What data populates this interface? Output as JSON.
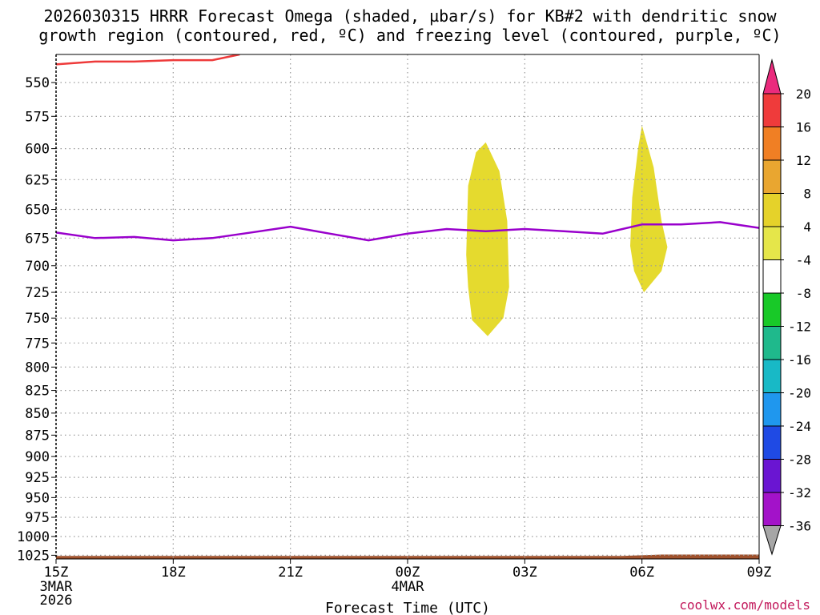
{
  "title_line1": "2026030315 HRRR Forecast Omega (shaded, µbar/s) for KB#2 with dendritic snow",
  "title_line2": "growth region (contoured, red, ºC) and freezing level (contoured, purple, ºC)",
  "xlabel": "Forecast Time (UTC)",
  "credit": "coolwx.com/models",
  "chart_data": {
    "type": "line",
    "y_axis_scale": "pressure (reversed, log)",
    "ylim": [
      1030,
      530
    ],
    "y_ticks": [
      550,
      575,
      600,
      625,
      650,
      675,
      700,
      725,
      750,
      775,
      800,
      825,
      850,
      875,
      900,
      925,
      950,
      975,
      1000,
      1025
    ],
    "y_tick_labels": [
      "550",
      "575",
      "600",
      "625",
      "650",
      "675",
      "700",
      "725",
      "750",
      "775",
      "800",
      "825",
      "850",
      "875",
      "900",
      "925",
      "950",
      "975",
      "1000",
      "1025"
    ],
    "x_ticks_hours": [
      0,
      3,
      6,
      9,
      12,
      15,
      18
    ],
    "x_tick_labels": [
      "15Z",
      "18Z",
      "21Z",
      "00Z",
      "03Z",
      "06Z",
      "09Z"
    ],
    "x_date_labels": [
      {
        "hour": 0,
        "lines": [
          "3MAR",
          "2026"
        ]
      },
      {
        "hour": 9,
        "lines": [
          "4MAR"
        ]
      }
    ],
    "xlim": [
      0,
      18
    ],
    "grid": "dotted",
    "series": [
      {
        "role": "freezing level",
        "color": "#9900cc",
        "points": [
          [
            0,
            670
          ],
          [
            1,
            675
          ],
          [
            2,
            674
          ],
          [
            3,
            677
          ],
          [
            4,
            675
          ],
          [
            5,
            670
          ],
          [
            6,
            665
          ],
          [
            7,
            671
          ],
          [
            8,
            677
          ],
          [
            9,
            671
          ],
          [
            10,
            667
          ],
          [
            11,
            669
          ],
          [
            12,
            667
          ],
          [
            13,
            669
          ],
          [
            14,
            671
          ],
          [
            15,
            663
          ],
          [
            16,
            663
          ],
          [
            17,
            661
          ],
          [
            18,
            666
          ]
        ]
      },
      {
        "role": "dendritic snow growth region",
        "color": "#ee3a3a",
        "points": [
          [
            0,
            537
          ],
          [
            1,
            535
          ],
          [
            2,
            535
          ],
          [
            3,
            534
          ],
          [
            4,
            534
          ],
          [
            4.7,
            530
          ]
        ]
      }
    ],
    "shaded_regions": [
      {
        "category": "4 to 8",
        "color": "#e5da2e",
        "outline": [
          [
            11.0,
            595
          ],
          [
            11.35,
            618
          ],
          [
            11.55,
            660
          ],
          [
            11.6,
            720
          ],
          [
            11.45,
            750
          ],
          [
            11.05,
            768
          ],
          [
            10.65,
            752
          ],
          [
            10.55,
            720
          ],
          [
            10.5,
            690
          ],
          [
            10.55,
            630
          ],
          [
            10.75,
            603
          ]
        ]
      },
      {
        "category": "4 to 8",
        "color": "#e5da2e",
        "outline": [
          [
            15.0,
            582
          ],
          [
            15.3,
            615
          ],
          [
            15.5,
            660
          ],
          [
            15.65,
            683
          ],
          [
            15.5,
            705
          ],
          [
            15.05,
            725
          ],
          [
            14.8,
            705
          ],
          [
            14.7,
            682
          ],
          [
            14.75,
            640
          ],
          [
            14.9,
            600
          ]
        ]
      },
      {
        "category": "surface terrain",
        "color": "#a0522d",
        "outline": [
          [
            0,
            1030
          ],
          [
            0,
            1026
          ],
          [
            12,
            1026
          ],
          [
            14.5,
            1026
          ],
          [
            15.5,
            1024
          ],
          [
            18,
            1024
          ],
          [
            18,
            1030
          ]
        ]
      }
    ],
    "colorbar": {
      "labels": [
        "20",
        "16",
        "12",
        "8",
        "4",
        "-4",
        "-8",
        "-12",
        "-16",
        "-20",
        "-24",
        "-28",
        "-32",
        "-36"
      ],
      "colors": [
        "#ea2b7d",
        "#ef3b3b",
        "#f07f24",
        "#e9a630",
        "#e5d22a",
        "#e5e64a",
        "#ffffff",
        "#18c928",
        "#1fb98c",
        "#18b9c6",
        "#1f97ee",
        "#1f4ae4",
        "#6a15d2",
        "#a312c9",
        "#a6a6a6",
        "#000000"
      ]
    }
  }
}
